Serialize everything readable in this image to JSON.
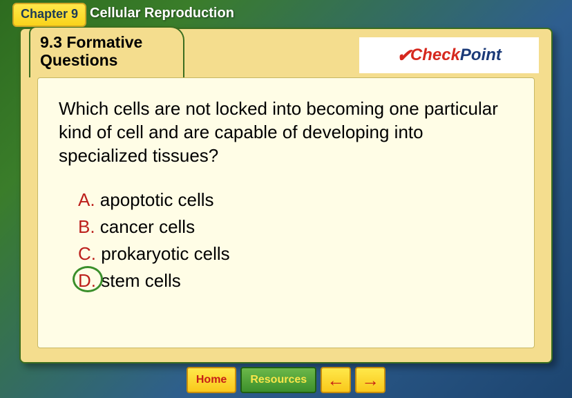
{
  "chapter": {
    "label": "Chapter 9",
    "title": "Cellular Reproduction"
  },
  "section_tab": "9.3 Formative Questions",
  "checkpoint": {
    "check": "Check",
    "point": "Point"
  },
  "question": "Which cells are not locked into becoming one particular kind of cell and are capable of developing into specialized tissues?",
  "answers": {
    "a": {
      "letter": "A.",
      "text": " apoptotic cells"
    },
    "b": {
      "letter": "B.",
      "text": " cancer cells"
    },
    "c": {
      "letter": "C.",
      "text": " prokaryotic cells"
    },
    "d": {
      "letter": "D.",
      "text": " stem cells"
    }
  },
  "correct_answer": "d",
  "nav": {
    "home": "Home",
    "resources": "Resources",
    "prev": "←",
    "next": "→"
  },
  "colors": {
    "answer_letter": "#bc1f1b",
    "circle": "#3a8f2a",
    "card_bg": "#f4dd8e",
    "content_bg": "#fffde6",
    "checkpoint_red": "#d6281e",
    "checkpoint_blue": "#1b3a78"
  }
}
